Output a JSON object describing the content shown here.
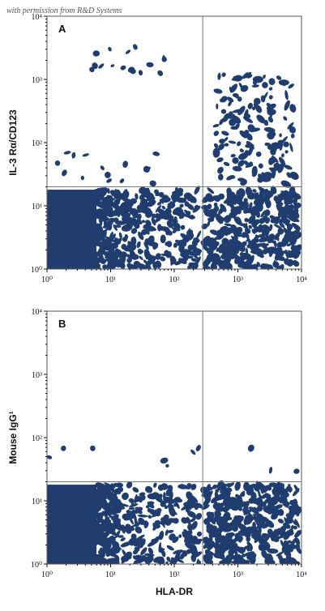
{
  "watermark": "with permission from R&D Systems",
  "colors": {
    "density": "#1f3d6e",
    "axis": "#555555",
    "gate": "#777777",
    "background": "#ffffff"
  },
  "chart_data": [
    {
      "type": "scatter",
      "subtype": "flow-cytometry-density",
      "panel_label": "A",
      "xlabel": "",
      "ylabel": "IL-3 Rα/CD123",
      "xscale": "log",
      "yscale": "log",
      "xlim": [
        1,
        10000
      ],
      "ylim": [
        1,
        10000
      ],
      "x_ticks": [
        1,
        10,
        100,
        1000,
        10000
      ],
      "x_tick_labels": [
        "10⁰",
        "10¹",
        "10²",
        "10³",
        "10⁴"
      ],
      "y_ticks": [
        1,
        10,
        100,
        1000,
        10000
      ],
      "y_tick_labels": [
        "10⁰",
        "10¹",
        "10²",
        "10³",
        "10⁴"
      ],
      "quadrant_gate": {
        "x": 280,
        "y": 20
      },
      "populations": [
        {
          "name": "",
          "x_range": [
            1,
            6
          ],
          "y_range": [
            1,
            18
          ],
          "density": "solid"
        },
        {
          "name": "",
          "x_range": [
            6,
            250
          ],
          "y_range": [
            1,
            18
          ],
          "density": "dense"
        },
        {
          "name": "",
          "x_range": [
            300,
            9000
          ],
          "y_range": [
            1,
            18
          ],
          "density": "dense"
        },
        {
          "name": "",
          "x_range": [
            450,
            8000
          ],
          "y_range": [
            22,
            1200
          ],
          "density": "medium"
        },
        {
          "name": "",
          "x_range": [
            5,
            70
          ],
          "y_range": [
            1200,
            3500
          ],
          "density": "sparse"
        },
        {
          "name": "",
          "x_range": [
            1,
            80
          ],
          "y_range": [
            21,
            70
          ],
          "density": "sparse"
        }
      ]
    },
    {
      "type": "scatter",
      "subtype": "flow-cytometry-density",
      "panel_label": "B",
      "xlabel": "HLA-DR",
      "ylabel": "Mouse IgG¹",
      "xscale": "log",
      "yscale": "log",
      "xlim": [
        1,
        10000
      ],
      "ylim": [
        1,
        10000
      ],
      "x_ticks": [
        1,
        10,
        100,
        1000,
        10000
      ],
      "x_tick_labels": [
        "10⁰",
        "10¹",
        "10²",
        "10³",
        "10⁴"
      ],
      "y_ticks": [
        1,
        10,
        100,
        1000,
        10000
      ],
      "y_tick_labels": [
        "10⁰",
        "10¹",
        "10²",
        "10³",
        "10⁴"
      ],
      "quadrant_gate": {
        "x": 280,
        "y": 20
      },
      "populations": [
        {
          "name": "",
          "x_range": [
            1,
            6
          ],
          "y_range": [
            1,
            18
          ],
          "density": "solid"
        },
        {
          "name": "",
          "x_range": [
            6,
            250
          ],
          "y_range": [
            1,
            18
          ],
          "density": "dense"
        },
        {
          "name": "",
          "x_range": [
            300,
            9000
          ],
          "y_range": [
            1,
            18
          ],
          "density": "dense"
        },
        {
          "name": "",
          "x_range": [
            1,
            9000
          ],
          "y_range": [
            21,
            70
          ],
          "density": "trace"
        }
      ]
    }
  ]
}
